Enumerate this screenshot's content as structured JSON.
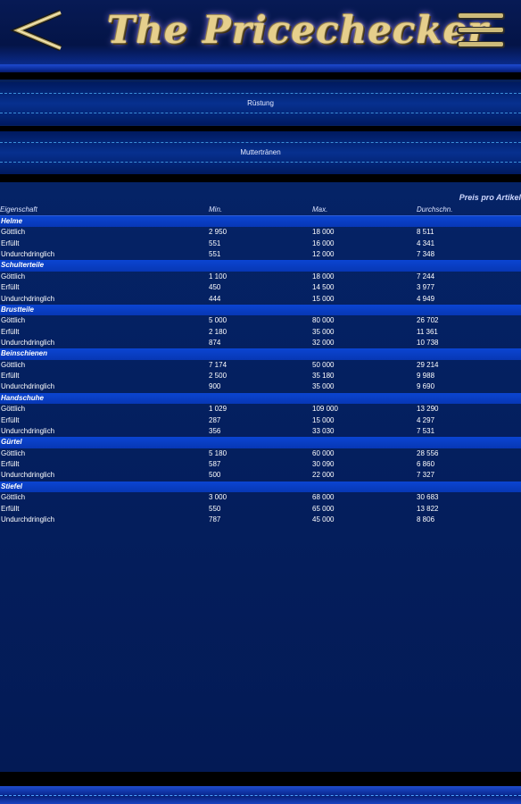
{
  "header": {
    "title": "The Pricechecker",
    "back_icon": "back-chevron-icon",
    "menu_icon": "menu-icon"
  },
  "breadcrumbs": {
    "category": "Rüstung",
    "subcategory": "Muttertränen"
  },
  "table": {
    "unit_note": "Preis pro Artikel",
    "columns": [
      "Eigenschaft",
      "Min.",
      "Max.",
      "Durchschn."
    ],
    "groups": [
      {
        "name": "Helme",
        "rows": [
          [
            "Göttlich",
            "2 950",
            "18 000",
            "8 511"
          ],
          [
            "Erfüllt",
            "551",
            "16 000",
            "4 341"
          ],
          [
            "Undurchdringlich",
            "551",
            "12 000",
            "7 348"
          ]
        ]
      },
      {
        "name": "Schulterteile",
        "rows": [
          [
            "Göttlich",
            "1 100",
            "18 000",
            "7 244"
          ],
          [
            "Erfüllt",
            "450",
            "14 500",
            "3 977"
          ],
          [
            "Undurchdringlich",
            "444",
            "15 000",
            "4 949"
          ]
        ]
      },
      {
        "name": "Brustteile",
        "rows": [
          [
            "Göttlich",
            "5 000",
            "80 000",
            "26 702"
          ],
          [
            "Erfüllt",
            "2 180",
            "35 000",
            "11 361"
          ],
          [
            "Undurchdringlich",
            "874",
            "32 000",
            "10 738"
          ]
        ]
      },
      {
        "name": "Beinschienen",
        "rows": [
          [
            "Göttlich",
            "7 174",
            "50 000",
            "29 214"
          ],
          [
            "Erfüllt",
            "2 500",
            "35 180",
            "9 988"
          ],
          [
            "Undurchdringlich",
            "900",
            "35 000",
            "9 690"
          ]
        ]
      },
      {
        "name": "Handschuhe",
        "rows": [
          [
            "Göttlich",
            "1 029",
            "109 000",
            "13 290"
          ],
          [
            "Erfüllt",
            "287",
            "15 000",
            "4 297"
          ],
          [
            "Undurchdringlich",
            "356",
            "33 030",
            "7 531"
          ]
        ]
      },
      {
        "name": "Gürtel",
        "rows": [
          [
            "Göttlich",
            "5 180",
            "60 000",
            "28 556"
          ],
          [
            "Erfüllt",
            "587",
            "30 090",
            "6 860"
          ],
          [
            "Undurchdringlich",
            "500",
            "22 000",
            "7 327"
          ]
        ]
      },
      {
        "name": "Stiefel",
        "rows": [
          [
            "Göttlich",
            "3 000",
            "68 000",
            "30 683"
          ],
          [
            "Erfüllt",
            "550",
            "65 000",
            "13 822"
          ],
          [
            "Undurchdringlich",
            "787",
            "45 000",
            "8 806"
          ]
        ]
      }
    ]
  },
  "colors": {
    "background": "#06205a",
    "group_row": "#0b45d2",
    "accent_band": "#1e4bd0",
    "title_gold": "#e6cf8c"
  }
}
